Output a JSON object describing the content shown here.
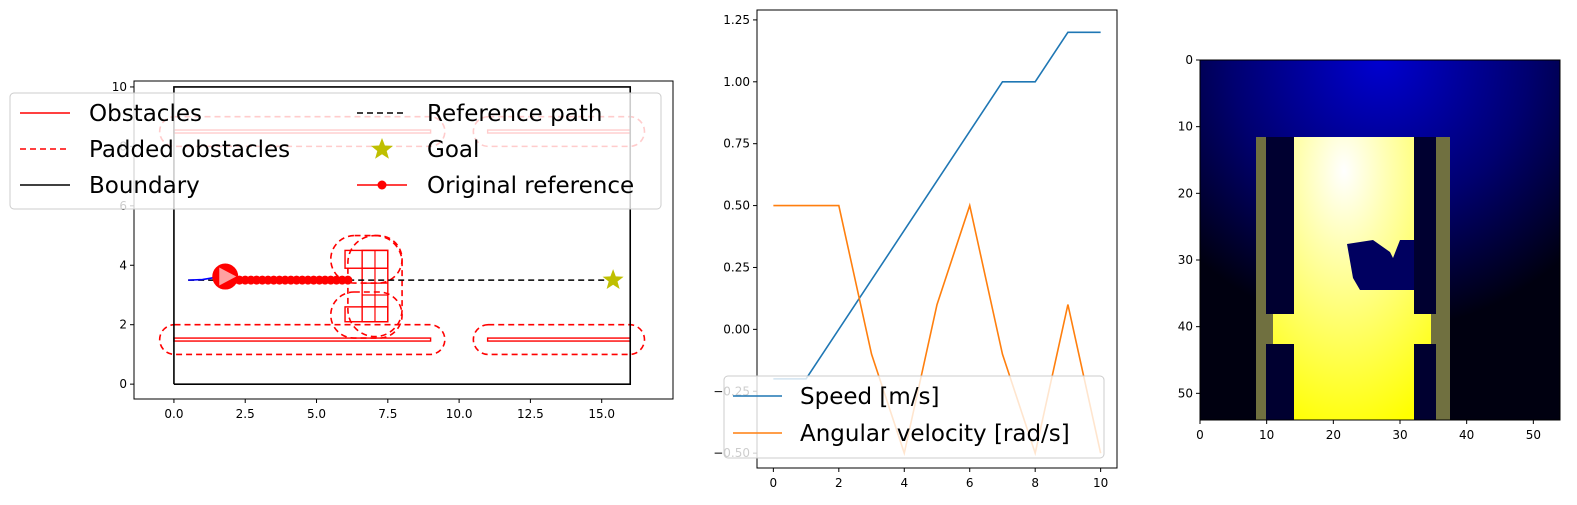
{
  "chart_data": [
    {
      "type": "scatter",
      "xlim": [
        -1.4,
        17.5
      ],
      "ylim": [
        -0.5,
        10.2
      ],
      "x_ticks": [
        0.0,
        2.5,
        5.0,
        7.5,
        10.0,
        12.5,
        15.0
      ],
      "x_tick_labels": [
        "0.0",
        "2.5",
        "5.0",
        "7.5",
        "10.0",
        "12.5",
        "15.0"
      ],
      "y_ticks": [
        0,
        2,
        4,
        6,
        8,
        10
      ],
      "y_tick_labels": [
        "0",
        "2",
        "4",
        "6",
        "8",
        "10"
      ],
      "legend": {
        "placement": "upper-left",
        "entries": [
          "Obstacles",
          "Padded obstacles",
          "Boundary",
          "Reference path",
          "Goal",
          "Original reference"
        ]
      },
      "colors": {
        "obstacles": "#ff0000",
        "padded": "#ff0000",
        "boundary": "#000000",
        "reference": "#000000",
        "goal": "#bfbf00",
        "original_reference": "#ff0000",
        "trajectory": "#0000ff",
        "robot": "#ff0000",
        "robot_arrow": "#ffa0a0"
      },
      "boundary": [
        [
          0,
          0
        ],
        [
          16,
          0
        ],
        [
          16,
          10
        ],
        [
          0,
          10
        ],
        [
          0,
          0
        ]
      ],
      "obstacles": [
        {
          "x0": 0,
          "y0": 1.45,
          "x1": 9,
          "y1": 1.55
        },
        {
          "x0": 11,
          "y0": 1.45,
          "x1": 16,
          "y1": 1.55
        },
        {
          "x0": 0,
          "y0": 8.45,
          "x1": 9,
          "y1": 8.55
        },
        {
          "x0": 11,
          "y0": 8.45,
          "x1": 16,
          "y1": 8.55
        },
        {
          "x0": 6.0,
          "y0": 2.1,
          "x1": 7.5,
          "y1": 2.6
        },
        {
          "x0": 6.0,
          "y0": 3.9,
          "x1": 7.5,
          "y1": 4.5
        },
        {
          "x0": 6.6,
          "y0": 2.1,
          "x1": 7.5,
          "y1": 4.5
        }
      ],
      "padded_obstacles": [
        {
          "x0": -0.5,
          "y0": 1.0,
          "x1": 9.5,
          "y1": 2.0
        },
        {
          "x0": 10.5,
          "y0": 1.0,
          "x1": 16.5,
          "y1": 2.0
        },
        {
          "x0": -0.5,
          "y0": 8.0,
          "x1": 9.5,
          "y1": 9.0
        },
        {
          "x0": 10.5,
          "y0": 8.0,
          "x1": 16.5,
          "y1": 9.0
        },
        {
          "x0": 5.5,
          "y0": 1.55,
          "x1": 8.0,
          "y1": 3.1
        },
        {
          "x0": 5.5,
          "y0": 3.4,
          "x1": 8.0,
          "y1": 5.0
        },
        {
          "x0": 6.1,
          "y0": 1.6,
          "x1": 8.0,
          "y1": 5.0
        }
      ],
      "reference_path": {
        "x": [
          0.5,
          15.5
        ],
        "y": [
          3.5,
          3.5
        ]
      },
      "goal": {
        "x": 15.4,
        "y": 3.5
      },
      "original_reference": {
        "x": [
          1.9,
          2.1,
          2.3,
          2.5,
          2.7,
          2.9,
          3.1,
          3.3,
          3.5,
          3.7,
          3.9,
          4.1,
          4.3,
          4.5,
          4.7,
          4.9,
          5.1,
          5.3,
          5.5,
          5.7,
          5.9,
          6.1
        ],
        "y": [
          3.5,
          3.5,
          3.5,
          3.5,
          3.5,
          3.5,
          3.5,
          3.5,
          3.5,
          3.5,
          3.5,
          3.5,
          3.5,
          3.5,
          3.5,
          3.5,
          3.5,
          3.5,
          3.5,
          3.5,
          3.5,
          3.5
        ]
      },
      "trajectory": {
        "x": [
          0.5,
          1.0,
          1.5,
          1.8
        ],
        "y": [
          3.5,
          3.52,
          3.6,
          3.62
        ]
      },
      "robot": {
        "x": 1.8,
        "y": 3.62
      }
    },
    {
      "type": "line",
      "xlim": [
        -0.5,
        10.5
      ],
      "ylim": [
        -0.56,
        1.29
      ],
      "x_ticks": [
        0,
        2,
        4,
        6,
        8,
        10
      ],
      "x_tick_labels": [
        "0",
        "2",
        "4",
        "6",
        "8",
        "10"
      ],
      "y_ticks": [
        -0.5,
        -0.25,
        0.0,
        0.25,
        0.5,
        0.75,
        1.0,
        1.25
      ],
      "y_tick_labels": [
        "−0.50",
        "−0.25",
        "0.00",
        "0.25",
        "0.50",
        "0.75",
        "1.00",
        "1.25"
      ],
      "legend": {
        "placement": "lower-left"
      },
      "x": [
        0,
        1,
        2,
        3,
        4,
        5,
        6,
        7,
        8,
        9,
        10
      ],
      "series": [
        {
          "name": "Speed [m/s]",
          "color": "#1f77b4",
          "values": [
            -0.2,
            -0.2,
            0.0,
            0.2,
            0.4,
            0.6,
            0.8,
            1.0,
            1.0,
            1.2,
            1.2
          ]
        },
        {
          "name": "Angular velocity [rad/s]",
          "color": "#ff7f0e",
          "values": [
            0.5,
            0.5,
            0.5,
            -0.1,
            -0.5,
            0.1,
            0.5,
            -0.1,
            -0.5,
            0.1,
            -0.5
          ]
        }
      ]
    },
    {
      "type": "heatmap",
      "xlim": [
        0,
        54
      ],
      "ylim": [
        54,
        0
      ],
      "x_ticks": [
        0,
        10,
        20,
        30,
        40,
        50
      ],
      "x_tick_labels": [
        "0",
        "10",
        "20",
        "30",
        "40",
        "50"
      ],
      "y_ticks": [
        0,
        10,
        20,
        30,
        40,
        50
      ],
      "y_tick_labels": [
        "0",
        "10",
        "20",
        "30",
        "40",
        "50"
      ],
      "colors": {
        "high": "#ffff00",
        "low_center": "#0000d0",
        "low_edge": "#000010"
      }
    }
  ]
}
